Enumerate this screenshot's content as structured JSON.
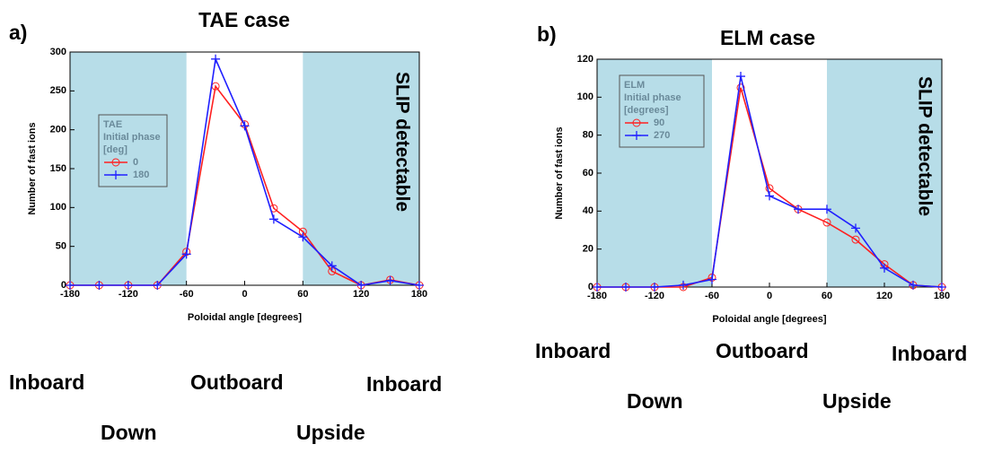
{
  "chart_data": [
    {
      "type": "line",
      "panel_label": "a)",
      "title": "TAE case",
      "xlabel": "Poloidal angle [degrees]",
      "ylabel": "Number of fast ions",
      "x": [
        -180,
        -150,
        -120,
        -90,
        -60,
        -30,
        0,
        30,
        60,
        90,
        120,
        150,
        180
      ],
      "series": [
        {
          "name": "0",
          "color": "#ff2020",
          "marker": "circle",
          "values": [
            0,
            0,
            0,
            0,
            43,
            256,
            207,
            99,
            69,
            18,
            0,
            7,
            0
          ]
        },
        {
          "name": "180",
          "color": "#2020ff",
          "marker": "plus",
          "values": [
            0,
            0,
            0,
            0,
            40,
            291,
            205,
            85,
            62,
            25,
            0,
            6,
            0
          ]
        }
      ],
      "xlim": [
        -180,
        180
      ],
      "ylim": [
        0,
        300
      ],
      "xticks": [
        -180,
        -120,
        -60,
        0,
        60,
        120,
        180
      ],
      "yticks": [
        0,
        50,
        100,
        150,
        200,
        250,
        300
      ],
      "legend_title": [
        "TAE",
        "Initial phase",
        "[deg]"
      ],
      "shaded_regions": [
        [
          -180,
          -60
        ],
        [
          60,
          180
        ]
      ],
      "shade_color": "#b7dde8",
      "region_label": "SLIP detectable",
      "annotations": [
        "Inboard",
        "Outboard",
        "Inboard",
        "Down",
        "Upside"
      ]
    },
    {
      "type": "line",
      "panel_label": "b)",
      "title": "ELM case",
      "xlabel": "Poloidal angle [degrees]",
      "ylabel": "Number of fast ions",
      "x": [
        -180,
        -150,
        -120,
        -90,
        -60,
        -30,
        0,
        30,
        60,
        90,
        120,
        150,
        180
      ],
      "series": [
        {
          "name": "90",
          "color": "#ff2020",
          "marker": "circle",
          "values": [
            0,
            0,
            0,
            0,
            5,
            105,
            52,
            41,
            34,
            25,
            12,
            1,
            0
          ]
        },
        {
          "name": "270",
          "color": "#2020ff",
          "marker": "plus",
          "values": [
            0,
            0,
            0,
            1,
            4,
            111,
            48,
            41,
            41,
            31,
            10,
            1,
            0
          ]
        }
      ],
      "xlim": [
        -180,
        180
      ],
      "ylim": [
        0,
        120
      ],
      "xticks": [
        -180,
        -120,
        -60,
        0,
        60,
        120,
        180
      ],
      "yticks": [
        0,
        20,
        40,
        60,
        80,
        100,
        120
      ],
      "legend_title": [
        "ELM",
        "Initial phase",
        "[degrees]"
      ],
      "shaded_regions": [
        [
          -180,
          -60
        ],
        [
          60,
          180
        ]
      ],
      "shade_color": "#b7dde8",
      "region_label": "SLIP detectable",
      "annotations": [
        "Inboard",
        "Outboard",
        "Inboard",
        "Down",
        "Upside"
      ]
    }
  ]
}
